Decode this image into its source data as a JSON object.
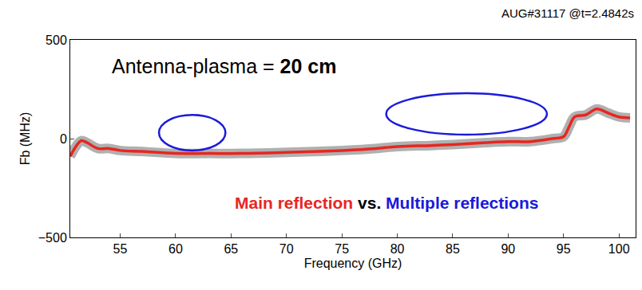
{
  "chart_data": {
    "type": "line",
    "title": "AUG#31117 @t=2.4842s",
    "x_label": "Frequency (GHz)",
    "y_label": "Fb (MHz)",
    "xlim": [
      50.5,
      101.5
    ],
    "xticks": [
      55,
      60,
      65,
      70,
      75,
      80,
      85,
      90,
      95,
      100
    ],
    "ylim": [
      -500,
      500
    ],
    "yticks": [
      {
        "value": -500,
        "label": "−500"
      },
      0,
      500
    ],
    "grid": false,
    "series": [
      {
        "name": "Main reflection",
        "color": "#e8261f",
        "type": "line",
        "x": [
          50.5,
          51,
          51.5,
          52,
          53,
          54,
          55,
          57,
          60,
          63,
          66,
          70,
          73,
          75,
          78,
          80,
          83,
          85,
          88,
          90,
          92,
          94,
          95,
          95.5,
          96,
          97,
          98,
          99,
          100,
          101
        ],
        "values": [
          -90,
          -40,
          -10,
          -20,
          -50,
          -50,
          -60,
          -65,
          -75,
          -75,
          -75,
          -70,
          -65,
          -60,
          -50,
          -40,
          -35,
          -30,
          -20,
          -15,
          -15,
          0,
          10,
          60,
          110,
          120,
          150,
          130,
          110,
          105
        ]
      },
      {
        "name": "Multiple reflections",
        "color": "#1a1adc",
        "type": "ellipse",
        "regions": [
          {
            "x": [
              58.5,
              64.5
            ],
            "y": [
              -60,
              120
            ]
          },
          {
            "x": [
              79,
              93.5
            ],
            "y": [
              20,
              230
            ]
          }
        ]
      }
    ],
    "annotations": [
      {
        "text": [
          "Antenna-plasma = ",
          "20 cm"
        ]
      },
      {
        "text": [
          "Main reflection",
          " vs. ",
          "Multiple reflections"
        ]
      }
    ]
  }
}
